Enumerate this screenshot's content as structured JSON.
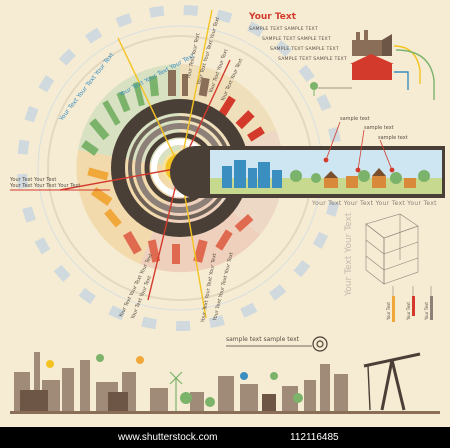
{
  "header": {
    "title": "Your Text",
    "sample_lines": [
      "SAMPLE TEXT SAMPLE TEXT",
      "SAMPLE TEXT SAMPLE TEXT",
      "SAMPLE TEXT SAMPLE TEXT",
      "SAMPLE TEXT SAMPLE TEXT"
    ]
  },
  "arc_text": {
    "inner": "Your Text Your Text Your Text",
    "outer": "Your Text Your Text Your Text",
    "left_lines": [
      "Your Text Your Text",
      "Your Text Your Text Your Text"
    ],
    "rays_top": [
      "Your Text Your Text",
      "Your Text Your Text Your Text",
      "Your Text Your Text",
      "Your Text Your Text"
    ],
    "rays_bottom": [
      "Your Text Your Text Your Text",
      "Your Text Your Text",
      "Your Text Your Text Your Text",
      "Your Text Your Text Your Text"
    ]
  },
  "right_panel": {
    "labels": [
      "sample text",
      "sample text",
      "sample text"
    ],
    "banner_text": "Your Text Your Text Your Text Your Text",
    "vertical_text": "Your Text Your Text",
    "bar_labels": [
      "Your Text",
      "Your Text",
      "Your Text"
    ]
  },
  "bottom": {
    "sample_line": "sample text  sample text"
  },
  "footer": {
    "url": "www.shutterstock.com",
    "id": "112116485"
  },
  "colors": {
    "background": "#f6ecd3",
    "accent_red": "#d33a2c",
    "accent_yellow": "#f4c321",
    "accent_blue": "#3b8ec0",
    "accent_green": "#7cb36b",
    "dark_brown": "#4a3f36"
  }
}
